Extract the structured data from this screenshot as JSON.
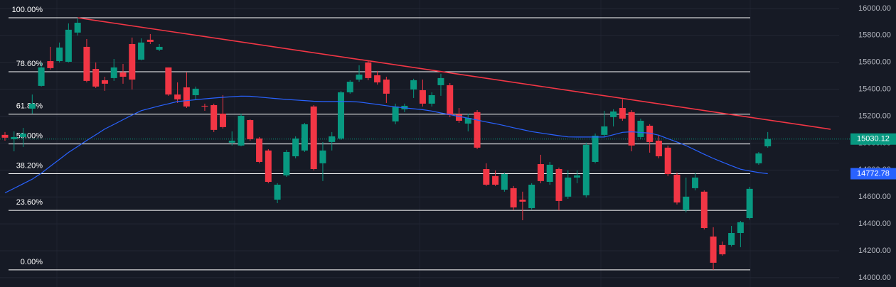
{
  "chart_data": {
    "type": "candlestick",
    "up_color": "#089981",
    "down_color": "#f23645",
    "ylim": [
      13931,
      16063
    ],
    "yticks": [
      {
        "value": 14000,
        "label": "14000.00"
      },
      {
        "value": 14200,
        "label": "14200.00"
      },
      {
        "value": 14400,
        "label": "14400.00"
      },
      {
        "value": 14600,
        "label": "14600.00"
      },
      {
        "value": 14800,
        "label": "14800.00"
      },
      {
        "value": 15000,
        "label": "15000.00"
      },
      {
        "value": 15200,
        "label": "15200.00"
      },
      {
        "value": 15400,
        "label": "15400.00"
      },
      {
        "value": 15600,
        "label": "15600.00"
      },
      {
        "value": 15800,
        "label": "15800.00"
      },
      {
        "value": 16000,
        "label": "16000.00"
      }
    ],
    "grid": true,
    "open": [
      15061,
      15029,
      15045,
      15256,
      15425,
      15609,
      15609,
      15604,
      15821,
      15715,
      15551,
      15467,
      15483,
      15525,
      15736,
      15620,
      15768,
      15694,
      15562,
      15361,
      15414,
      15356,
      15277,
      15282,
      15219,
      15003,
      14982,
      15171,
      15034,
      14945,
      14580,
      14760,
      14902,
      14945,
      15272,
      14850,
      15008,
      15034,
      15377,
      15472,
      15599,
      15504,
      15472,
      15161,
      15251,
      15398,
      15393,
      15293,
      15430,
      15430,
      15214,
      15145,
      15230,
      14807,
      14755,
      14654,
      14665,
      14580,
      14517,
      14844,
      14712,
      14807,
      14602,
      14744,
      14612,
      14860,
      15061,
      15193,
      15261,
      15230,
      15045,
      15129,
      15018,
      14966,
      14765,
      14501,
      14665,
      14639,
      14306,
      14243,
      14243,
      14332,
      14443,
      14850,
      14976
    ],
    "high": [
      15082,
      15087,
      15113,
      15361,
      15599,
      15715,
      15747,
      15889,
      15931,
      15773,
      15599,
      15493,
      15625,
      15588,
      15784,
      15778,
      15810,
      15736,
      15562,
      15451,
      15525,
      15420,
      15293,
      15293,
      15356,
      15087,
      15219,
      15177,
      15045,
      14955,
      14702,
      14950,
      15050,
      15150,
      15282,
      15008,
      15082,
      15388,
      15467,
      15578,
      15615,
      15536,
      15493,
      15293,
      15293,
      15478,
      15472,
      15377,
      15515,
      15446,
      15261,
      15219,
      15245,
      14850,
      14797,
      14781,
      14681,
      14639,
      14702,
      14913,
      14860,
      14818,
      14797,
      14797,
      15003,
      15071,
      15240,
      15251,
      15325,
      15245,
      15182,
      15140,
      15061,
      14982,
      14781,
      14744,
      14776,
      14649,
      14375,
      14269,
      14385,
      14422,
      14675,
      14934,
      15082
    ],
    "low": [
      15018,
      14939,
      14971,
      15219,
      15420,
      15546,
      15599,
      15599,
      15799,
      15451,
      15409,
      15388,
      15462,
      15441,
      15398,
      15615,
      15736,
      15683,
      15351,
      15298,
      15261,
      15325,
      15240,
      15082,
      15108,
      14982,
      14976,
      15018,
      14850,
      14702,
      14554,
      14749,
      14887,
      14934,
      14797,
      14718,
      14945,
      15024,
      15367,
      15456,
      15467,
      15435,
      15298,
      15140,
      15230,
      15335,
      15272,
      15272,
      15351,
      15193,
      15150,
      15087,
      14955,
      14681,
      14681,
      14639,
      14501,
      14427,
      14507,
      14702,
      14691,
      14501,
      14586,
      14702,
      14596,
      14850,
      15045,
      15124,
      15166,
      14939,
      15029,
      14929,
      14887,
      14755,
      14544,
      14485,
      14649,
      14359,
      14058,
      14164,
      14232,
      14227,
      14433,
      14839,
      14966
    ],
    "close": [
      15040,
      15045,
      15071,
      15293,
      15562,
      15557,
      15710,
      15842,
      15894,
      15462,
      15420,
      15441,
      15562,
      15493,
      15472,
      15747,
      15752,
      15715,
      15361,
      15325,
      15272,
      15404,
      15272,
      15098,
      15119,
      15018,
      15203,
      15029,
      14860,
      14712,
      14691,
      14934,
      15034,
      15140,
      14807,
      14945,
      15050,
      15377,
      15456,
      15509,
      15483,
      15451,
      15367,
      15272,
      15277,
      15467,
      15293,
      15356,
      15483,
      15208,
      15166,
      15187,
      14966,
      14691,
      14691,
      14770,
      14522,
      14565,
      14691,
      14718,
      14839,
      14570,
      14744,
      14760,
      14987,
      15055,
      15124,
      15235,
      15182,
      14982,
      15166,
      15008,
      14902,
      14770,
      14559,
      14602,
      14744,
      14369,
      14111,
      14174,
      14332,
      14412,
      14660,
      14923,
      15030.12
    ],
    "ma": {
      "color": "#2962ff",
      "values": [
        14630,
        14664,
        14698,
        14732,
        14776,
        14828,
        14879,
        14931,
        14975,
        15019,
        15062,
        15105,
        15139,
        15174,
        15208,
        15241,
        15259,
        15276,
        15292,
        15309,
        15315,
        15322,
        15329,
        15335,
        15340,
        15345,
        15349,
        15348,
        15342,
        15336,
        15330,
        15324,
        15320,
        15316,
        15311,
        15309,
        15309,
        15309,
        15309,
        15305,
        15296,
        15287,
        15278,
        15269,
        15262,
        15255,
        15248,
        15238,
        15224,
        15211,
        15198,
        15185,
        15171,
        15157,
        15144,
        15130,
        15114,
        15100,
        15085,
        15075,
        15065,
        15055,
        15046,
        15045,
        15045,
        15045,
        15045,
        15062,
        15080,
        15084,
        15079,
        15074,
        15059,
        15033,
        15008,
        14981,
        14949,
        14917,
        14886,
        14859,
        14832,
        14806,
        14793,
        14781,
        14772.78
      ]
    },
    "trendline": {
      "color": "#f23645",
      "values": [
        15931,
        15103
      ]
    },
    "fib_color": "#ffffff",
    "fib_levels": [
      {
        "label": "100.00%",
        "price": 15931
      },
      {
        "label": "78.60%",
        "price": 15530
      },
      {
        "label": "61.80%",
        "price": 15215
      },
      {
        "label": "50.00%",
        "price": 14994
      },
      {
        "label": "38.20%",
        "price": 14773
      },
      {
        "label": "23.60%",
        "price": 14500
      },
      {
        "label": "0.00%",
        "price": 14058
      }
    ]
  }
}
